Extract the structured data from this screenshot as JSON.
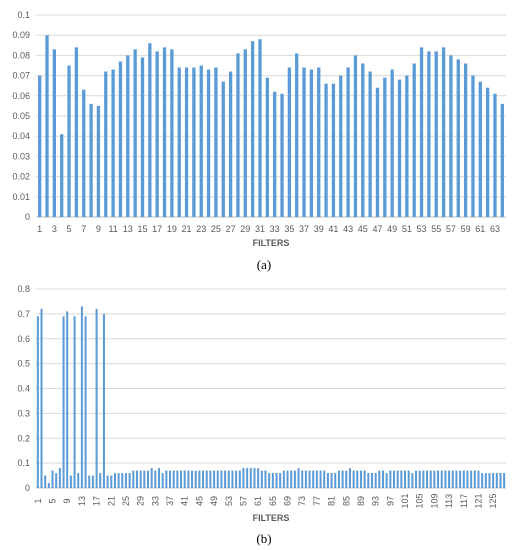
{
  "chart_data": [
    {
      "type": "bar",
      "panel_label": "(a)",
      "xlabel": "FILTERS",
      "ylabel": "",
      "ylim": [
        0,
        0.1
      ],
      "yticks": [
        0,
        0.01,
        0.02,
        0.03,
        0.04,
        0.05,
        0.06,
        0.07,
        0.08,
        0.09,
        0.1
      ],
      "grid": true,
      "color": "#5b9bd5",
      "categories": [
        "1",
        "2",
        "3",
        "4",
        "5",
        "6",
        "7",
        "8",
        "9",
        "10",
        "11",
        "12",
        "13",
        "14",
        "15",
        "16",
        "17",
        "18",
        "19",
        "20",
        "21",
        "22",
        "23",
        "24",
        "25",
        "26",
        "27",
        "28",
        "29",
        "30",
        "31",
        "32",
        "33",
        "34",
        "35",
        "36",
        "37",
        "38",
        "39",
        "40",
        "41",
        "42",
        "43",
        "44",
        "45",
        "46",
        "47",
        "48",
        "49",
        "50",
        "51",
        "52",
        "53",
        "54",
        "55",
        "56",
        "57",
        "58",
        "59",
        "60",
        "61",
        "62",
        "63",
        "64"
      ],
      "xtick_labels": [
        "1",
        "3",
        "5",
        "7",
        "9",
        "11",
        "13",
        "15",
        "17",
        "19",
        "21",
        "23",
        "25",
        "27",
        "29",
        "31",
        "33",
        "35",
        "37",
        "39",
        "41",
        "43",
        "45",
        "47",
        "49",
        "51",
        "53",
        "55",
        "57",
        "59",
        "61",
        "63"
      ],
      "values": [
        0.07,
        0.09,
        0.083,
        0.041,
        0.075,
        0.084,
        0.063,
        0.056,
        0.055,
        0.072,
        0.073,
        0.077,
        0.08,
        0.083,
        0.079,
        0.086,
        0.082,
        0.084,
        0.083,
        0.074,
        0.074,
        0.074,
        0.075,
        0.073,
        0.074,
        0.067,
        0.072,
        0.081,
        0.083,
        0.087,
        0.088,
        0.069,
        0.062,
        0.061,
        0.074,
        0.081,
        0.074,
        0.073,
        0.074,
        0.066,
        0.066,
        0.07,
        0.074,
        0.08,
        0.076,
        0.072,
        0.064,
        0.069,
        0.073,
        0.068,
        0.07,
        0.076,
        0.084,
        0.082,
        0.082,
        0.084,
        0.08,
        0.078,
        0.076,
        0.07,
        0.067,
        0.064,
        0.061,
        0.056
      ]
    },
    {
      "type": "bar",
      "panel_label": "(b)",
      "xlabel": "FILTERS",
      "ylabel": "",
      "ylim": [
        0,
        0.8
      ],
      "yticks": [
        0,
        0.1,
        0.2,
        0.3,
        0.4,
        0.5,
        0.6,
        0.7,
        0.8
      ],
      "grid": true,
      "color": "#5b9bd5",
      "categories": [
        "1",
        "2",
        "3",
        "4",
        "5",
        "6",
        "7",
        "8",
        "9",
        "10",
        "11",
        "12",
        "13",
        "14",
        "15",
        "16",
        "17",
        "18",
        "19",
        "20",
        "21",
        "22",
        "23",
        "24",
        "25",
        "26",
        "27",
        "28",
        "29",
        "30",
        "31",
        "32",
        "33",
        "34",
        "35",
        "36",
        "37",
        "38",
        "39",
        "40",
        "41",
        "42",
        "43",
        "44",
        "45",
        "46",
        "47",
        "48",
        "49",
        "50",
        "51",
        "52",
        "53",
        "54",
        "55",
        "56",
        "57",
        "58",
        "59",
        "60",
        "61",
        "62",
        "63",
        "64",
        "65",
        "66",
        "67",
        "68",
        "69",
        "70",
        "71",
        "72",
        "73",
        "74",
        "75",
        "76",
        "77",
        "78",
        "79",
        "80",
        "81",
        "82",
        "83",
        "84",
        "85",
        "86",
        "87",
        "88",
        "89",
        "90",
        "91",
        "92",
        "93",
        "94",
        "95",
        "96",
        "97",
        "98",
        "99",
        "100",
        "101",
        "102",
        "103",
        "104",
        "105",
        "106",
        "107",
        "108",
        "109",
        "110",
        "111",
        "112",
        "113",
        "114",
        "115",
        "116",
        "117",
        "118",
        "119",
        "120",
        "121",
        "122",
        "123",
        "124",
        "125",
        "126",
        "127",
        "128"
      ],
      "xtick_labels": [
        "1",
        "5",
        "9",
        "13",
        "17",
        "21",
        "25",
        "29",
        "33",
        "37",
        "41",
        "45",
        "49",
        "53",
        "57",
        "61",
        "65",
        "69",
        "73",
        "77",
        "81",
        "85",
        "89",
        "93",
        "97",
        "101",
        "105",
        "109",
        "113",
        "117",
        "121",
        "125"
      ],
      "values": [
        0.69,
        0.72,
        0.05,
        0.02,
        0.07,
        0.06,
        0.08,
        0.69,
        0.71,
        0.05,
        0.69,
        0.06,
        0.73,
        0.69,
        0.05,
        0.05,
        0.72,
        0.06,
        0.7,
        0.05,
        0.05,
        0.06,
        0.06,
        0.06,
        0.06,
        0.06,
        0.07,
        0.07,
        0.07,
        0.07,
        0.07,
        0.08,
        0.07,
        0.08,
        0.06,
        0.07,
        0.07,
        0.07,
        0.07,
        0.07,
        0.07,
        0.07,
        0.07,
        0.07,
        0.07,
        0.07,
        0.07,
        0.07,
        0.07,
        0.07,
        0.07,
        0.07,
        0.07,
        0.07,
        0.07,
        0.07,
        0.08,
        0.08,
        0.08,
        0.08,
        0.08,
        0.07,
        0.07,
        0.06,
        0.06,
        0.06,
        0.06,
        0.07,
        0.07,
        0.07,
        0.07,
        0.08,
        0.07,
        0.07,
        0.07,
        0.07,
        0.07,
        0.07,
        0.07,
        0.06,
        0.06,
        0.06,
        0.07,
        0.07,
        0.07,
        0.08,
        0.07,
        0.07,
        0.07,
        0.07,
        0.06,
        0.06,
        0.06,
        0.07,
        0.07,
        0.06,
        0.07,
        0.07,
        0.07,
        0.07,
        0.07,
        0.07,
        0.06,
        0.07,
        0.07,
        0.07,
        0.07,
        0.07,
        0.07,
        0.07,
        0.07,
        0.07,
        0.07,
        0.07,
        0.07,
        0.07,
        0.07,
        0.07,
        0.07,
        0.07,
        0.07,
        0.06,
        0.06,
        0.06,
        0.06,
        0.06,
        0.06,
        0.06
      ]
    }
  ]
}
